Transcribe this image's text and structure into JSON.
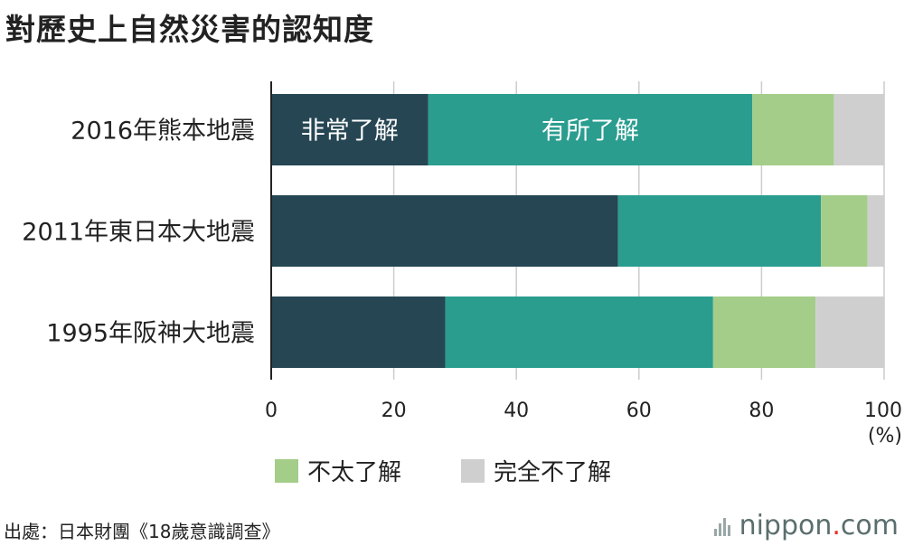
{
  "title": "對歷史上自然災害的認知度",
  "chart_data": {
    "type": "bar",
    "orientation": "horizontal",
    "stacked": true,
    "categories": [
      "2016年熊本地震",
      "2011年東日本大地震",
      "1995年阪神大地震"
    ],
    "series": [
      {
        "name": "非常了解",
        "color": "#264653",
        "values": [
          25.6,
          56.6,
          28.4
        ]
      },
      {
        "name": "有所了解",
        "color": "#2a9d8f",
        "values": [
          52.9,
          33.1,
          43.7
        ]
      },
      {
        "name": "不太了解",
        "color": "#a3cd88",
        "values": [
          13.3,
          7.6,
          16.7
        ]
      },
      {
        "name": "完全不了解",
        "color": "#cfcfcf",
        "values": [
          8.2,
          2.7,
          11.2
        ]
      }
    ],
    "inline_labels": [
      "非常了解",
      "有所了解"
    ],
    "legend": [
      "不太了解",
      "完全不了解"
    ],
    "legend_position": "bottom",
    "xlim": [
      0,
      100
    ],
    "xticks": [
      "0",
      "20",
      "40",
      "60",
      "80",
      "100"
    ],
    "xunit": "(%)",
    "grid": true
  },
  "source": "出處：日本財團《18歲意識調查》",
  "brand": {
    "name": "nippon",
    "dot": ".",
    "tld": "com"
  }
}
